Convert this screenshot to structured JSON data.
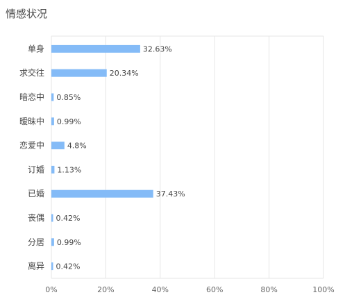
{
  "title": "情感状况",
  "colors": {
    "bar": "#84BBF7",
    "grid": "#E6E6E6",
    "text": "#444444"
  },
  "chart_data": {
    "type": "bar",
    "orientation": "horizontal",
    "categories": [
      "单身",
      "求交往",
      "暗恋中",
      "暧昧中",
      "恋爱中",
      "订婚",
      "已婚",
      "丧偶",
      "分居",
      "离异"
    ],
    "values": [
      32.63,
      20.34,
      0.85,
      0.99,
      4.8,
      1.13,
      37.43,
      0.42,
      0.99,
      0.42
    ],
    "data_labels": [
      "32.63%",
      "20.34%",
      "0.85%",
      "0.99%",
      "4.8%",
      "1.13%",
      "37.43%",
      "0.42%",
      "0.99%",
      "0.42%"
    ],
    "x_ticks": [
      "0%",
      "20%",
      "40%",
      "60%",
      "80%",
      "100%"
    ],
    "x_tick_values": [
      0,
      20,
      40,
      60,
      80,
      100
    ],
    "xlim": [
      0,
      100
    ],
    "grid": true,
    "legend": "none"
  }
}
